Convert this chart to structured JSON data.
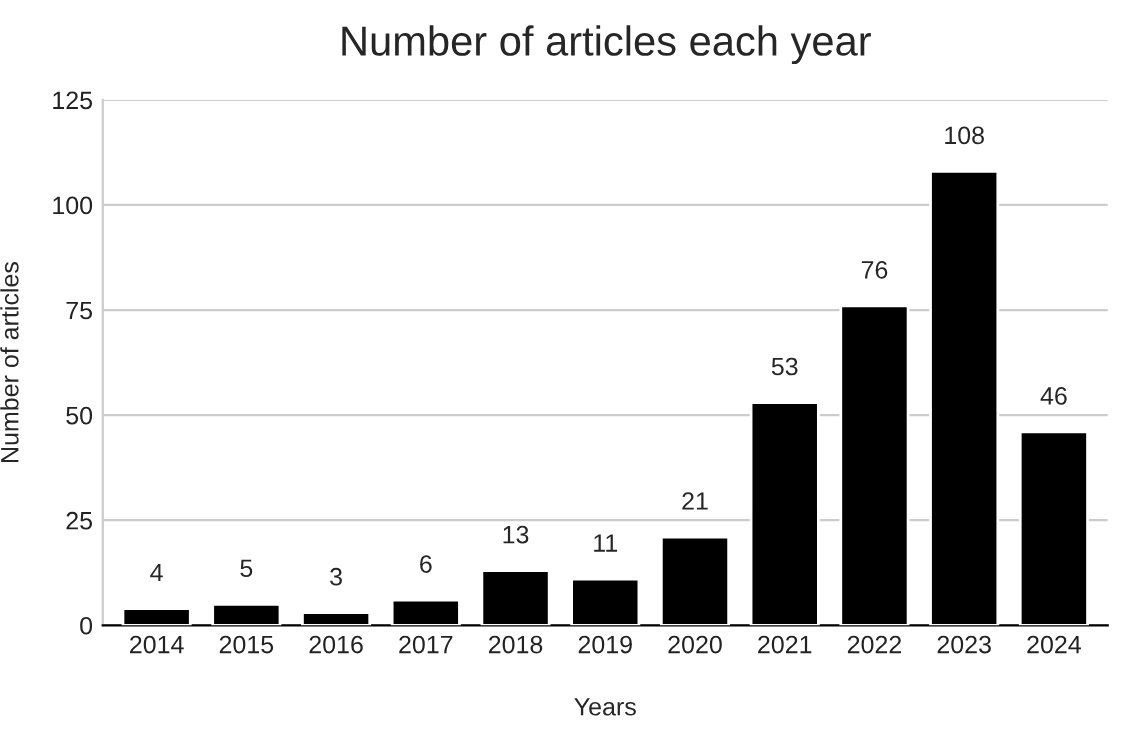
{
  "chart_data": {
    "type": "bar",
    "title": "Number of articles each year",
    "xlabel": "Years",
    "ylabel": "Number of articles",
    "categories": [
      "2014",
      "2015",
      "2016",
      "2017",
      "2018",
      "2019",
      "2020",
      "2021",
      "2022",
      "2023",
      "2024"
    ],
    "values": [
      4,
      5,
      3,
      6,
      13,
      11,
      21,
      53,
      76,
      108,
      46
    ],
    "color": "#000000",
    "ylim": [
      0,
      125
    ],
    "yticks": [
      0,
      25,
      50,
      75,
      100,
      125
    ],
    "grid": "y",
    "data_labels": true
  }
}
